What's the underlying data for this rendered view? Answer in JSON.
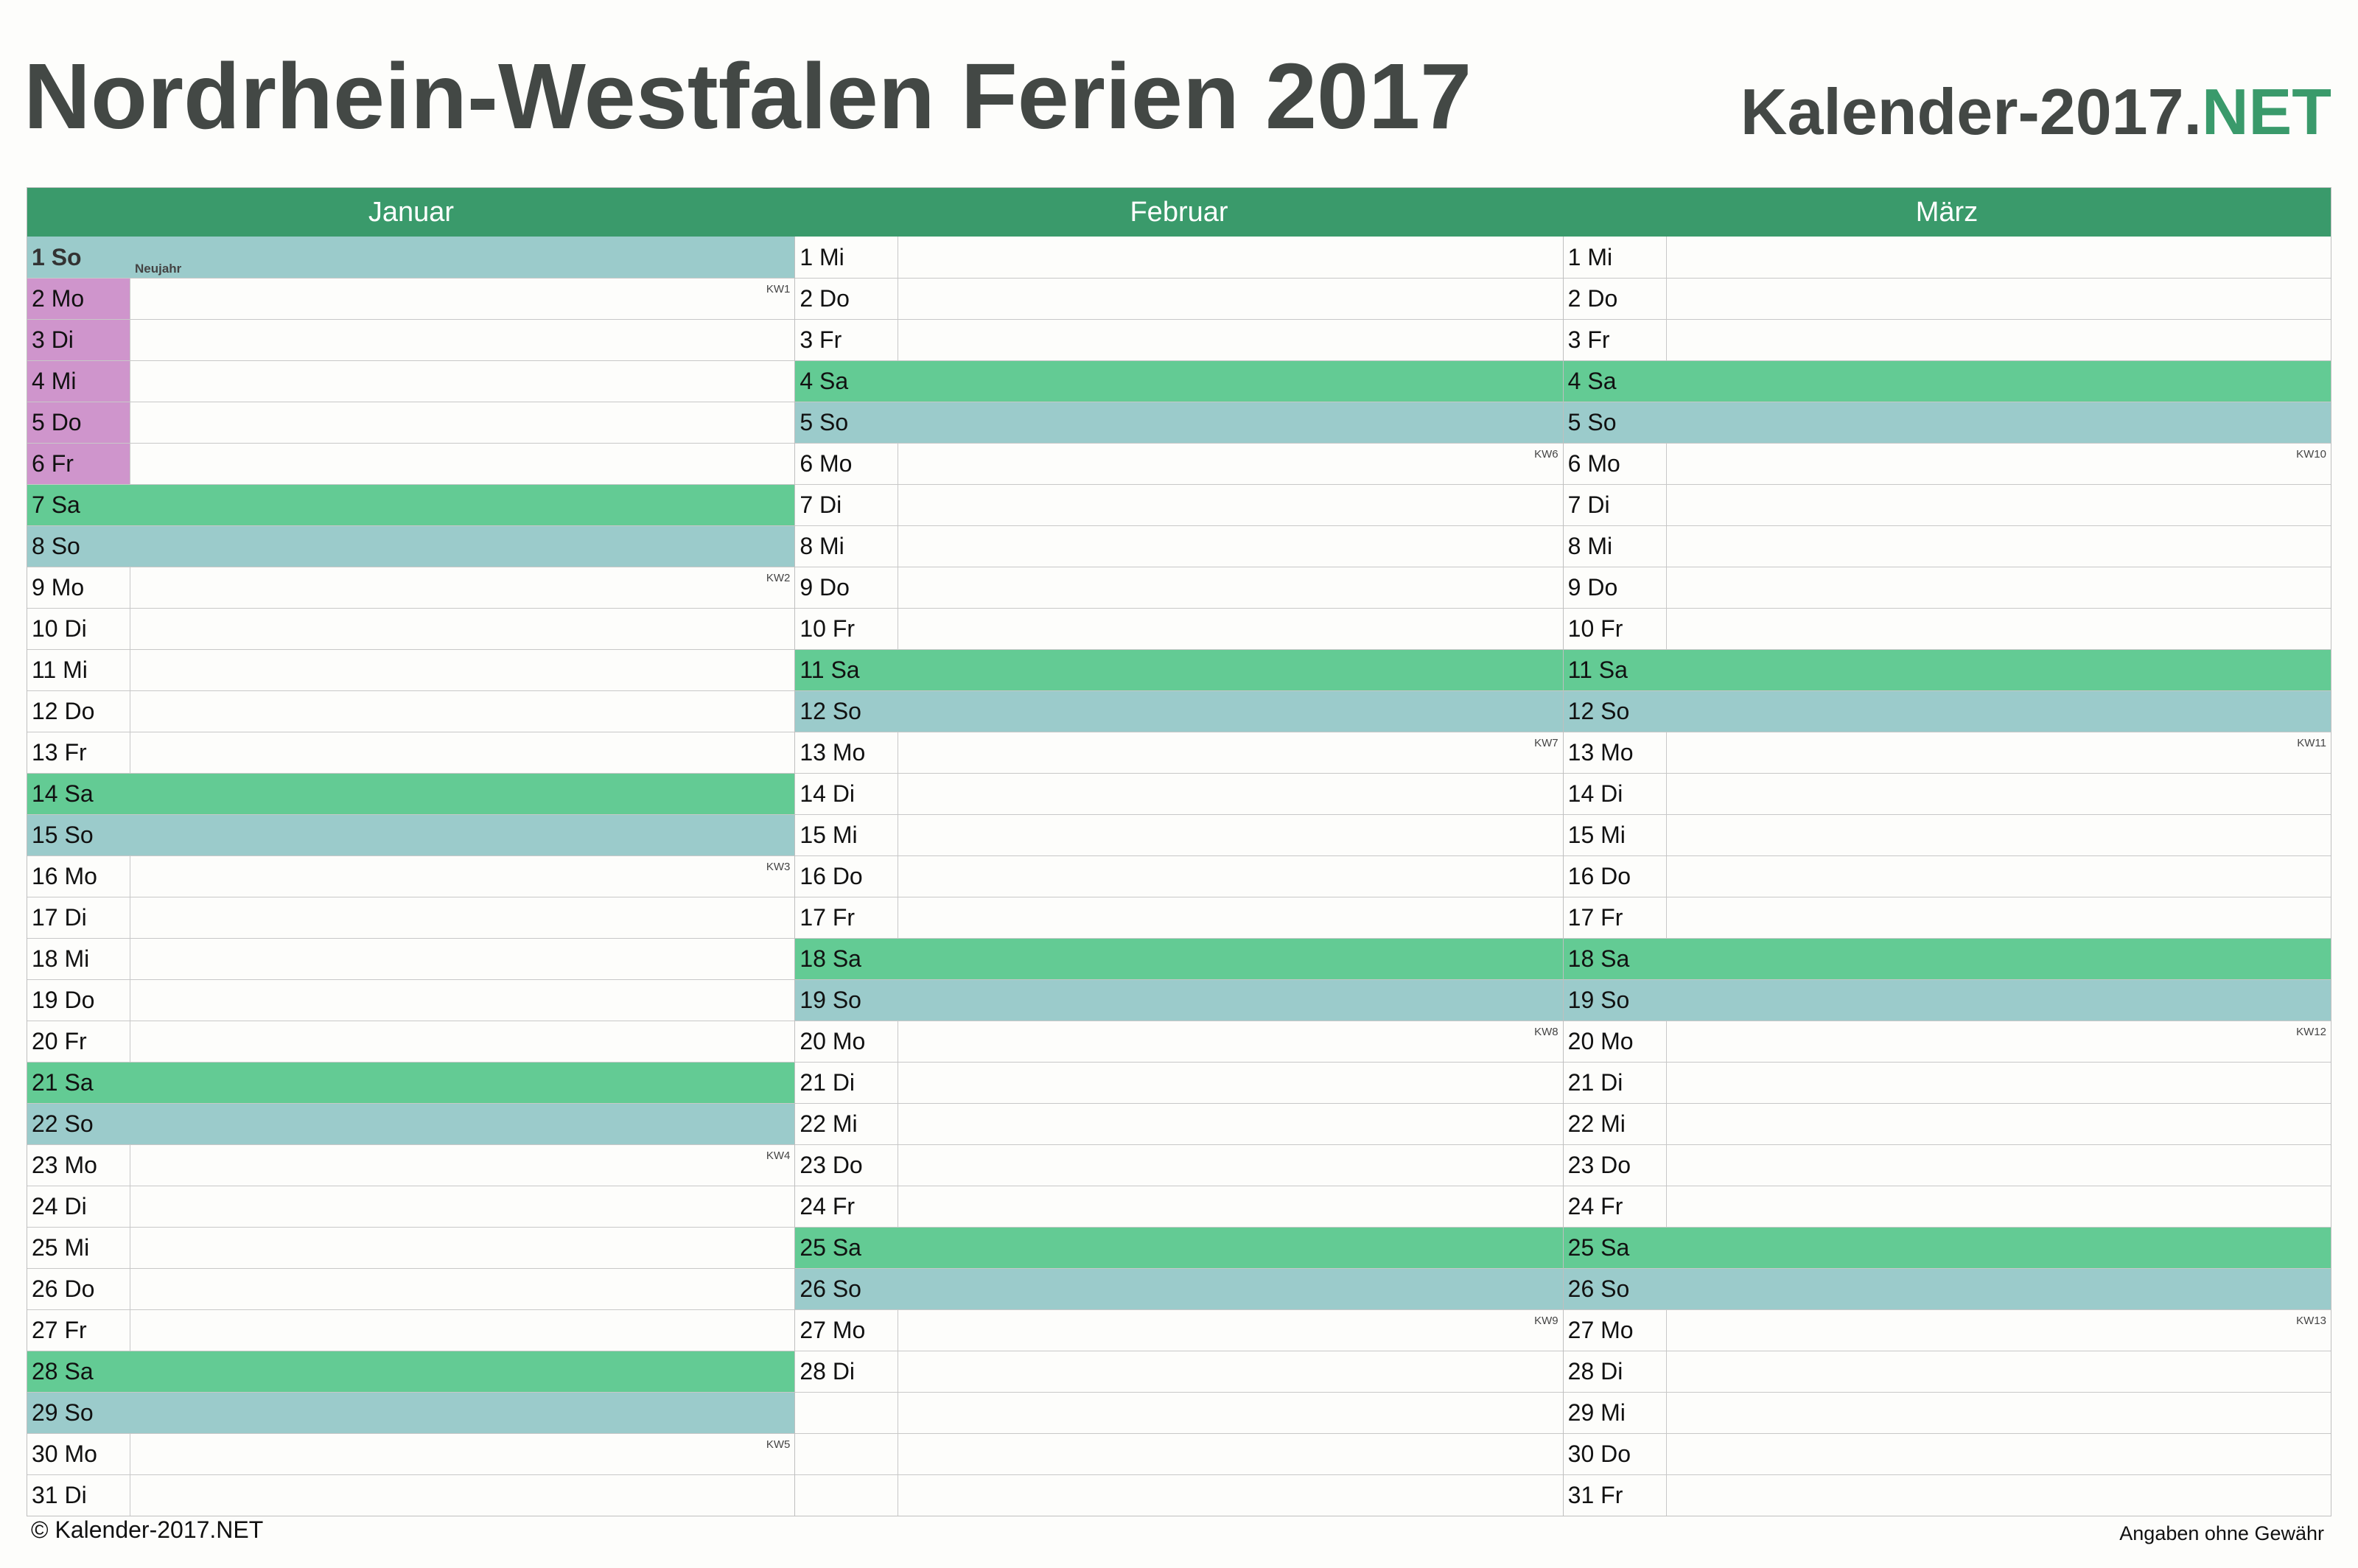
{
  "title": "Nordrhein-Westfalen Ferien 2017",
  "brand": {
    "main": "Kalender-2017.",
    "accent": "NET"
  },
  "colors": {
    "header": "#3a9a6b",
    "saturday": "#63cb94",
    "sunday": "#9bcbcb",
    "ferien": "#cf95cc",
    "title": "#434845"
  },
  "months": [
    {
      "name": "Januar",
      "days": [
        {
          "d": "1 So",
          "t": "so",
          "holiday": "Neujahr"
        },
        {
          "d": "2 Mo",
          "t": "",
          "kw": "KW1",
          "ferien": true
        },
        {
          "d": "3 Di",
          "t": "",
          "ferien": true
        },
        {
          "d": "4 Mi",
          "t": "",
          "ferien": true
        },
        {
          "d": "5 Do",
          "t": "",
          "ferien": true
        },
        {
          "d": "6 Fr",
          "t": "",
          "ferien": true
        },
        {
          "d": "7 Sa",
          "t": "sa"
        },
        {
          "d": "8 So",
          "t": "so"
        },
        {
          "d": "9 Mo",
          "t": "",
          "kw": "KW2"
        },
        {
          "d": "10 Di",
          "t": ""
        },
        {
          "d": "11 Mi",
          "t": ""
        },
        {
          "d": "12 Do",
          "t": ""
        },
        {
          "d": "13 Fr",
          "t": ""
        },
        {
          "d": "14 Sa",
          "t": "sa"
        },
        {
          "d": "15 So",
          "t": "so"
        },
        {
          "d": "16 Mo",
          "t": "",
          "kw": "KW3"
        },
        {
          "d": "17 Di",
          "t": ""
        },
        {
          "d": "18 Mi",
          "t": ""
        },
        {
          "d": "19 Do",
          "t": ""
        },
        {
          "d": "20 Fr",
          "t": ""
        },
        {
          "d": "21 Sa",
          "t": "sa"
        },
        {
          "d": "22 So",
          "t": "so"
        },
        {
          "d": "23 Mo",
          "t": "",
          "kw": "KW4"
        },
        {
          "d": "24 Di",
          "t": ""
        },
        {
          "d": "25 Mi",
          "t": ""
        },
        {
          "d": "26 Do",
          "t": ""
        },
        {
          "d": "27 Fr",
          "t": ""
        },
        {
          "d": "28 Sa",
          "t": "sa"
        },
        {
          "d": "29 So",
          "t": "so"
        },
        {
          "d": "30 Mo",
          "t": "",
          "kw": "KW5"
        },
        {
          "d": "31 Di",
          "t": ""
        }
      ]
    },
    {
      "name": "Februar",
      "days": [
        {
          "d": "1 Mi",
          "t": ""
        },
        {
          "d": "2 Do",
          "t": ""
        },
        {
          "d": "3 Fr",
          "t": ""
        },
        {
          "d": "4 Sa",
          "t": "sa"
        },
        {
          "d": "5 So",
          "t": "so"
        },
        {
          "d": "6 Mo",
          "t": "",
          "kw": "KW6"
        },
        {
          "d": "7 Di",
          "t": ""
        },
        {
          "d": "8 Mi",
          "t": ""
        },
        {
          "d": "9 Do",
          "t": ""
        },
        {
          "d": "10 Fr",
          "t": ""
        },
        {
          "d": "11 Sa",
          "t": "sa"
        },
        {
          "d": "12 So",
          "t": "so"
        },
        {
          "d": "13 Mo",
          "t": "",
          "kw": "KW7"
        },
        {
          "d": "14 Di",
          "t": ""
        },
        {
          "d": "15 Mi",
          "t": ""
        },
        {
          "d": "16 Do",
          "t": ""
        },
        {
          "d": "17 Fr",
          "t": ""
        },
        {
          "d": "18 Sa",
          "t": "sa"
        },
        {
          "d": "19 So",
          "t": "so"
        },
        {
          "d": "20 Mo",
          "t": "",
          "kw": "KW8"
        },
        {
          "d": "21 Di",
          "t": ""
        },
        {
          "d": "22 Mi",
          "t": ""
        },
        {
          "d": "23 Do",
          "t": ""
        },
        {
          "d": "24 Fr",
          "t": ""
        },
        {
          "d": "25 Sa",
          "t": "sa"
        },
        {
          "d": "26 So",
          "t": "so"
        },
        {
          "d": "27 Mo",
          "t": "",
          "kw": "KW9"
        },
        {
          "d": "28 Di",
          "t": ""
        },
        {
          "d": "",
          "t": ""
        },
        {
          "d": "",
          "t": ""
        },
        {
          "d": "",
          "t": ""
        }
      ]
    },
    {
      "name": "März",
      "days": [
        {
          "d": "1 Mi",
          "t": ""
        },
        {
          "d": "2 Do",
          "t": ""
        },
        {
          "d": "3 Fr",
          "t": ""
        },
        {
          "d": "4 Sa",
          "t": "sa"
        },
        {
          "d": "5 So",
          "t": "so"
        },
        {
          "d": "6 Mo",
          "t": "",
          "kw": "KW10"
        },
        {
          "d": "7 Di",
          "t": ""
        },
        {
          "d": "8 Mi",
          "t": ""
        },
        {
          "d": "9 Do",
          "t": ""
        },
        {
          "d": "10 Fr",
          "t": ""
        },
        {
          "d": "11 Sa",
          "t": "sa"
        },
        {
          "d": "12 So",
          "t": "so"
        },
        {
          "d": "13 Mo",
          "t": "",
          "kw": "KW11"
        },
        {
          "d": "14 Di",
          "t": ""
        },
        {
          "d": "15 Mi",
          "t": ""
        },
        {
          "d": "16 Do",
          "t": ""
        },
        {
          "d": "17 Fr",
          "t": ""
        },
        {
          "d": "18 Sa",
          "t": "sa"
        },
        {
          "d": "19 So",
          "t": "so"
        },
        {
          "d": "20 Mo",
          "t": "",
          "kw": "KW12"
        },
        {
          "d": "21 Di",
          "t": ""
        },
        {
          "d": "22 Mi",
          "t": ""
        },
        {
          "d": "23 Do",
          "t": ""
        },
        {
          "d": "24 Fr",
          "t": ""
        },
        {
          "d": "25 Sa",
          "t": "sa"
        },
        {
          "d": "26 So",
          "t": "so"
        },
        {
          "d": "27 Mo",
          "t": "",
          "kw": "KW13"
        },
        {
          "d": "28 Di",
          "t": ""
        },
        {
          "d": "29 Mi",
          "t": ""
        },
        {
          "d": "30 Do",
          "t": ""
        },
        {
          "d": "31 Fr",
          "t": ""
        }
      ]
    }
  ],
  "footer": {
    "copyright": "© Kalender-2017.NET",
    "note": "Angaben ohne Gewähr"
  }
}
